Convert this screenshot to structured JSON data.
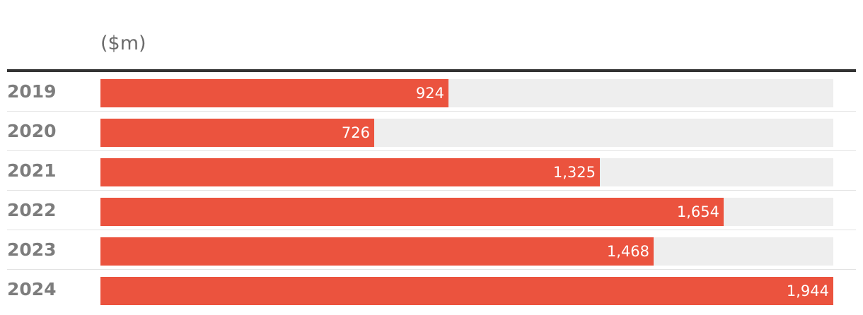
{
  "chart_data": {
    "type": "bar",
    "orientation": "horizontal",
    "unit_label": "($m)",
    "categories": [
      "2019",
      "2020",
      "2021",
      "2022",
      "2023",
      "2024"
    ],
    "values": [
      924,
      726,
      1325,
      1654,
      1468,
      1944
    ],
    "value_labels": [
      "924",
      "726",
      "1,325",
      "1,654",
      "1,468",
      "1,944"
    ],
    "xlim": [
      0,
      1944
    ],
    "grid": false,
    "legend": "none",
    "colors": {
      "bar": "#eb533e",
      "track": "#eeeeee",
      "category_text": "#7d7d7d",
      "rule": "#333333"
    }
  }
}
